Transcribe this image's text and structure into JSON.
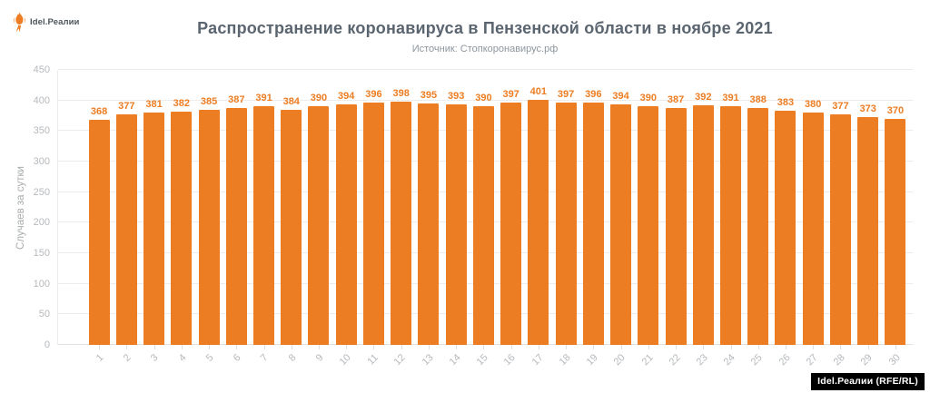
{
  "logo": {
    "text": "Idel.Реалии"
  },
  "footer": {
    "badge": "Idel.Реалии (RFE/RL)"
  },
  "colors": {
    "bar": "#ED7D23",
    "value_label": "#ED7D23",
    "title": "#5a6570",
    "subtitle": "#8d969e",
    "axis_text": "#b6b9bc",
    "gridline": "#ececec"
  },
  "chart_data": {
    "type": "bar",
    "title": "Распространение коронавируса в Пензенской области в ноябре 2021",
    "subtitle": "Источник: Стопкоронавирус.рф",
    "xlabel": "",
    "ylabel": "Случаев за сутки",
    "ylim": [
      0,
      450
    ],
    "ytick_step": 50,
    "grid": true,
    "legend": false,
    "categories": [
      "1",
      "2",
      "3",
      "4",
      "5",
      "6",
      "7",
      "8",
      "9",
      "10",
      "11",
      "12",
      "13",
      "14",
      "15",
      "16",
      "17",
      "18",
      "19",
      "20",
      "21",
      "22",
      "23",
      "24",
      "25",
      "26",
      "27",
      "28",
      "29",
      "30"
    ],
    "values": [
      368,
      377,
      381,
      382,
      385,
      387,
      391,
      384,
      390,
      394,
      396,
      398,
      395,
      393,
      390,
      397,
      401,
      397,
      396,
      394,
      390,
      387,
      392,
      391,
      388,
      383,
      380,
      377,
      373,
      370
    ]
  }
}
